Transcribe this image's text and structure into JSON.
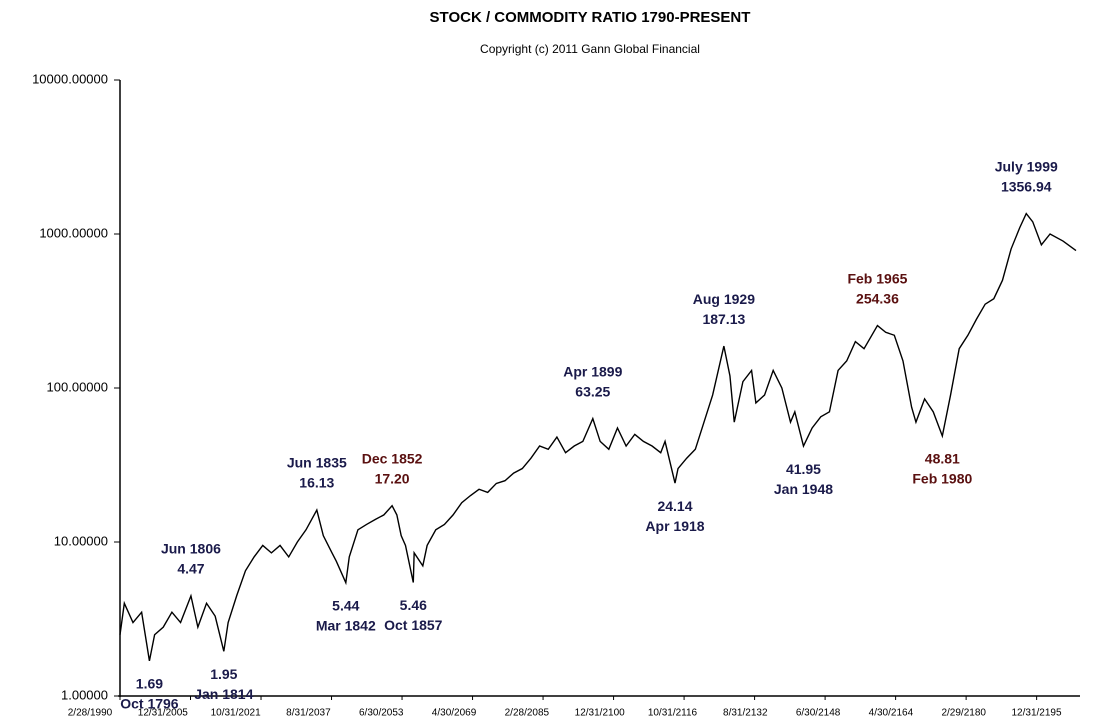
{
  "chart_data": {
    "type": "line",
    "title": "STOCK / COMMODITY  RATIO 1790-PRESENT",
    "subtitle": "Copyright (c) 2011 Gann Global Financial",
    "log_scale": true,
    "xlim": [
      1790,
      2011
    ],
    "ylim": [
      1,
      10000
    ],
    "yticks": [
      {
        "value": 1,
        "label": "1.00000"
      },
      {
        "value": 10,
        "label": "10.00000"
      },
      {
        "value": 100,
        "label": "100.00000"
      },
      {
        "value": 1000,
        "label": "1000.00000"
      },
      {
        "value": 10000,
        "label": "10000.00000"
      }
    ],
    "xticks": [
      {
        "value": 1790,
        "label": "2/28/1990"
      },
      {
        "value": 1806.3,
        "label": "12/31/2005"
      },
      {
        "value": 1822.6,
        "label": "10/31/2021"
      },
      {
        "value": 1838.9,
        "label": "8/31/2037"
      },
      {
        "value": 1855.2,
        "label": "6/30/2053"
      },
      {
        "value": 1871.5,
        "label": "4/30/2069"
      },
      {
        "value": 1887.8,
        "label": "2/28/2085"
      },
      {
        "value": 1904.1,
        "label": "12/31/2100"
      },
      {
        "value": 1920.4,
        "label": "10/31/2116"
      },
      {
        "value": 1936.7,
        "label": "8/31/2132"
      },
      {
        "value": 1953,
        "label": "6/30/2148"
      },
      {
        "value": 1969.3,
        "label": "4/30/2164"
      },
      {
        "value": 1985.6,
        "label": "2/29/2180"
      },
      {
        "value": 2001.9,
        "label": "12/31/2195"
      }
    ],
    "series": [
      {
        "color": "#000000",
        "x": [
          1790,
          1791,
          1793,
          1795,
          1796.8,
          1798,
          1800,
          1802,
          1804,
          1806.4,
          1808,
          1810,
          1812,
          1814,
          1815,
          1817,
          1819,
          1821,
          1823,
          1825,
          1827,
          1829,
          1831,
          1833,
          1835.5,
          1837,
          1839,
          1840,
          1842.2,
          1843,
          1845,
          1847,
          1849,
          1851,
          1852.9,
          1854,
          1855,
          1856,
          1857.8,
          1858,
          1860,
          1861,
          1863,
          1865,
          1867,
          1869,
          1871,
          1873,
          1875,
          1877,
          1879,
          1881,
          1883,
          1885,
          1887,
          1889,
          1891,
          1893,
          1895,
          1897,
          1899.3,
          1901,
          1903,
          1905,
          1907,
          1909,
          1911,
          1913,
          1915,
          1916,
          1918.3,
          1919,
          1921,
          1923,
          1925,
          1927,
          1929.6,
          1931,
          1932,
          1934,
          1936,
          1937,
          1939,
          1941,
          1943,
          1945,
          1946,
          1948,
          1950,
          1952,
          1954,
          1956,
          1958,
          1960,
          1962,
          1965.1,
          1967,
          1969,
          1971,
          1973,
          1974,
          1976,
          1978,
          1980.1,
          1982,
          1984,
          1986,
          1988,
          1990,
          1992,
          1994,
          1996,
          1998,
          1999.5,
          2001,
          2003,
          2005,
          2008,
          2011
        ],
        "values": [
          2.5,
          4.0,
          3.0,
          3.5,
          1.69,
          2.5,
          2.8,
          3.5,
          3.0,
          4.47,
          2.8,
          4.0,
          3.3,
          1.95,
          3.0,
          4.5,
          6.5,
          8.0,
          9.5,
          8.5,
          9.5,
          8.0,
          10,
          12,
          16.13,
          11,
          8.5,
          7.5,
          5.44,
          8,
          12,
          13,
          14,
          15,
          17.2,
          15,
          11,
          9.5,
          5.46,
          8.5,
          7,
          9.5,
          12,
          13,
          15,
          18,
          20,
          22,
          21,
          24,
          25,
          28,
          30,
          35,
          42,
          40,
          48,
          38,
          42,
          45,
          63.25,
          45,
          40,
          55,
          42,
          50,
          45,
          42,
          38,
          45,
          24.14,
          30,
          35,
          40,
          60,
          90,
          187.13,
          120,
          60,
          110,
          130,
          80,
          90,
          130,
          100,
          60,
          70,
          41.95,
          55,
          65,
          70,
          130,
          150,
          200,
          180,
          254.36,
          230,
          220,
          150,
          75,
          60,
          85,
          70,
          48.81,
          90,
          180,
          220,
          280,
          350,
          380,
          500,
          800,
          1100,
          1356.94,
          1200,
          850,
          1000,
          900,
          780
        ]
      }
    ],
    "annotations": [
      {
        "date": "Oct 1796",
        "value": 1.69,
        "x": 1796.8,
        "side": "below",
        "color": "#1a1a4a"
      },
      {
        "date": "Jun 1806",
        "value": 4.47,
        "x": 1806.4,
        "side": "above",
        "color": "#1a1a4a"
      },
      {
        "date": "Jan 1814",
        "value": 1.95,
        "x": 1814,
        "side": "below",
        "color": "#1a1a4a"
      },
      {
        "date": "Jun 1835",
        "value": 16.13,
        "x": 1835.5,
        "side": "above",
        "color": "#1a1a4a"
      },
      {
        "date": "Mar 1842",
        "value": 5.44,
        "x": 1842.2,
        "side": "below",
        "color": "#1a1a4a"
      },
      {
        "date": "Dec 1852",
        "value": 17.2,
        "value_label": "17.20",
        "x": 1852.9,
        "side": "above",
        "color": "#5a1010"
      },
      {
        "date": "Oct 1857",
        "value": 5.46,
        "x": 1857.8,
        "side": "below",
        "color": "#1a1a4a"
      },
      {
        "date": "Apr 1899",
        "value": 63.25,
        "x": 1899.3,
        "side": "above",
        "color": "#1a1a4a"
      },
      {
        "date": "Apr 1918",
        "value": 24.14,
        "x": 1918.3,
        "side": "below",
        "color": "#1a1a4a"
      },
      {
        "date": "Aug 1929",
        "value": 187.13,
        "x": 1929.6,
        "side": "above",
        "color": "#1a1a4a"
      },
      {
        "date": "Jan 1948",
        "value": 41.95,
        "x": 1948,
        "side": "below",
        "color": "#1a1a4a"
      },
      {
        "date": "Feb 1965",
        "value": 254.36,
        "x": 1965.1,
        "side": "above",
        "color": "#5a1010"
      },
      {
        "date": "Feb 1980",
        "value": 48.81,
        "x": 1980.1,
        "side": "below",
        "color": "#5a1010"
      },
      {
        "date": "July 1999",
        "value": 1356.94,
        "x": 1999.5,
        "side": "above",
        "color": "#1a1a4a"
      }
    ]
  }
}
